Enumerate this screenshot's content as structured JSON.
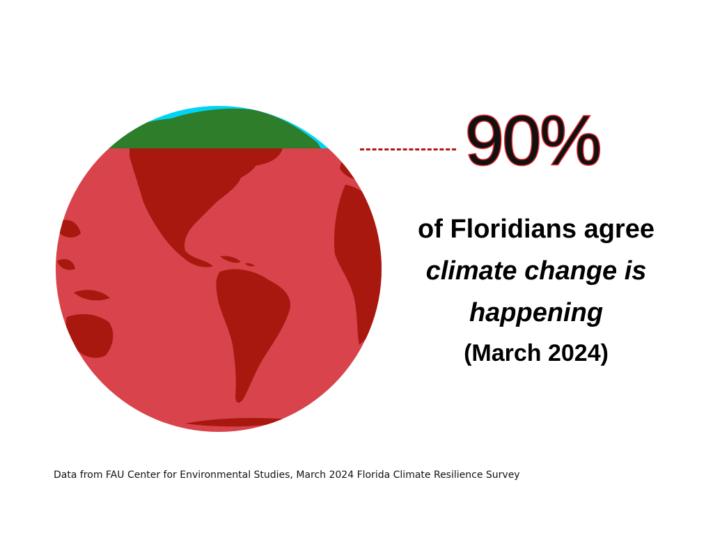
{
  "stat": {
    "value_label": "90%",
    "value_fraction": 0.9
  },
  "caption": {
    "line1": "of Floridians agree",
    "line2": "climate change is",
    "line3": "happening",
    "line4": "(March 2024)"
  },
  "source_note": "Data from FAU Center for Environmental Studies, March 2024 Florida Climate Resilience Survey",
  "colors": {
    "overlay_red": "#d9434b",
    "land_green": "#2d7d2a",
    "ocean_cyan": "#00d4f6",
    "land_dark_red": "#a8180f",
    "accent_red": "#e0262a"
  },
  "icons": {
    "globe": "globe-icon"
  }
}
